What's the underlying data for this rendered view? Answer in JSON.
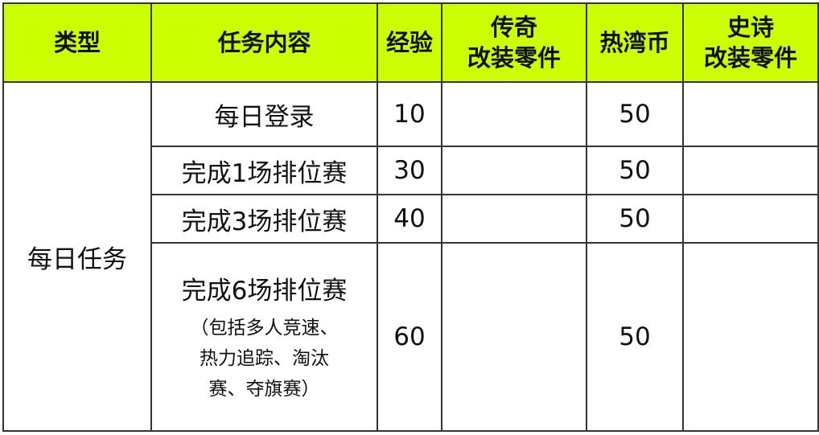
{
  "header_color": "#ccff00",
  "headers": {
    "type": "类型",
    "content": "任务内容",
    "exp": "经验",
    "legend_parts": [
      "传奇",
      "改装零件"
    ],
    "coins": "热湾币",
    "epic_parts": [
      "史诗",
      "改装零件"
    ]
  },
  "category": "每日任务",
  "rows": [
    {
      "task": "每日登录",
      "exp": "10",
      "legend": "",
      "coins": "50",
      "epic": ""
    },
    {
      "task": "完成1场排位赛",
      "exp": "30",
      "legend": "",
      "coins": "50",
      "epic": ""
    },
    {
      "task": "完成3场排位赛",
      "exp": "40",
      "legend": "",
      "coins": "50",
      "epic": ""
    },
    {
      "task": "完成6场排位赛",
      "note_lines": [
        "（包括多人竞速、",
        "热力追踪、淘汰",
        "赛、夺旗赛）"
      ],
      "exp": "60",
      "legend": "",
      "coins": "50",
      "epic": ""
    }
  ]
}
